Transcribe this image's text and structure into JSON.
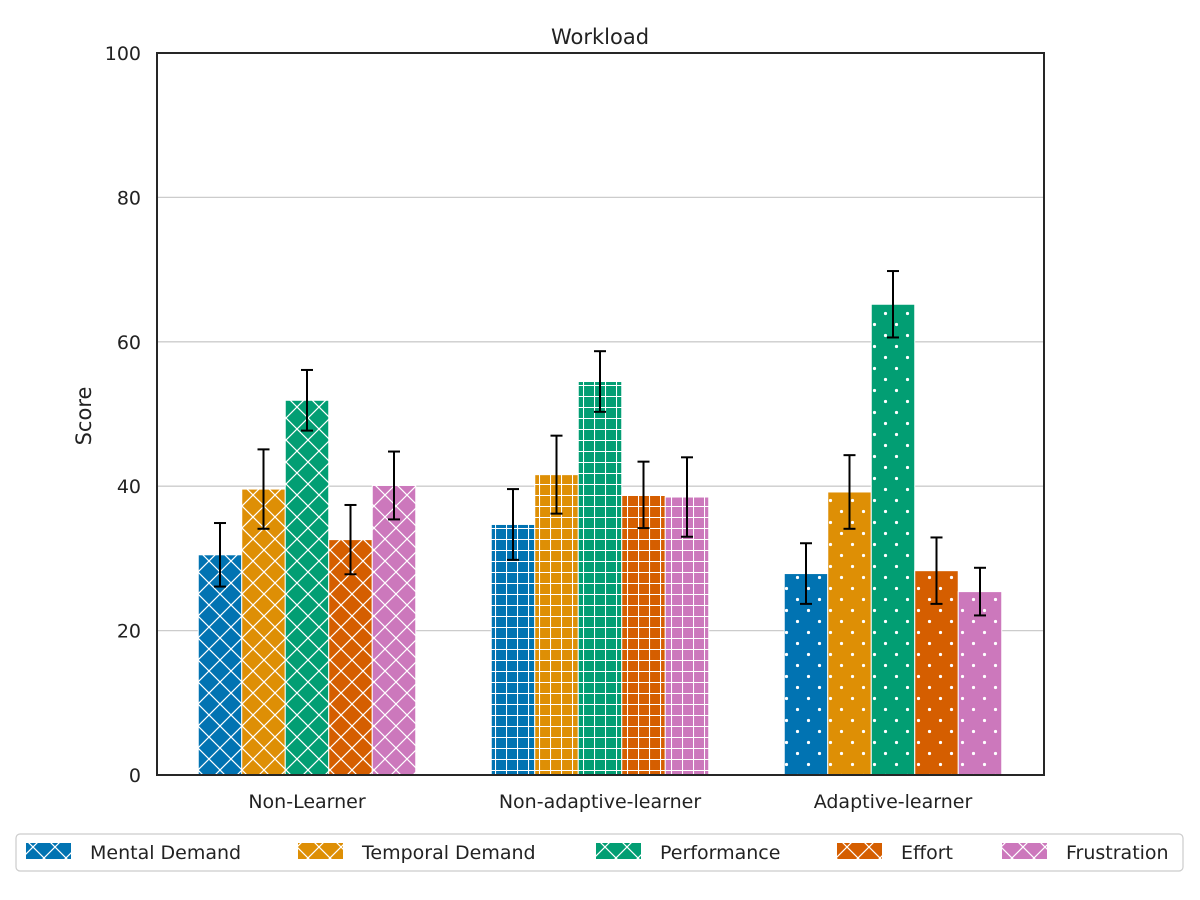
{
  "chart_data": {
    "type": "bar",
    "title": "Workload",
    "xlabel": "",
    "ylabel": "Score",
    "ylim": [
      0,
      100
    ],
    "yticks": [
      0,
      20,
      40,
      60,
      80,
      100
    ],
    "grid": "horizontal",
    "legend_position": "bottom",
    "categories": [
      "Non-Learner",
      "Non-adaptive-learner",
      "Adaptive-learner"
    ],
    "hatch_patterns": [
      "crosshatch-diagonal",
      "grid",
      "dots"
    ],
    "series": [
      {
        "name": "Mental Demand",
        "color": "#0173b2",
        "values": [
          30.5,
          34.7,
          27.9
        ],
        "errors": [
          4.4,
          4.9,
          4.2
        ]
      },
      {
        "name": "Temporal Demand",
        "color": "#de8f05",
        "values": [
          39.6,
          41.6,
          39.2
        ],
        "errors": [
          5.5,
          5.4,
          5.1
        ]
      },
      {
        "name": "Performance",
        "color": "#029e73",
        "values": [
          51.9,
          54.5,
          65.2
        ],
        "errors": [
          4.2,
          4.2,
          4.6
        ]
      },
      {
        "name": "Effort",
        "color": "#d55e00",
        "values": [
          32.6,
          38.8,
          28.3
        ],
        "errors": [
          4.8,
          4.6,
          4.6
        ]
      },
      {
        "name": "Frustration",
        "color": "#cc78bc",
        "values": [
          40.1,
          38.5,
          25.4
        ],
        "errors": [
          4.7,
          5.5,
          3.3
        ]
      }
    ]
  }
}
